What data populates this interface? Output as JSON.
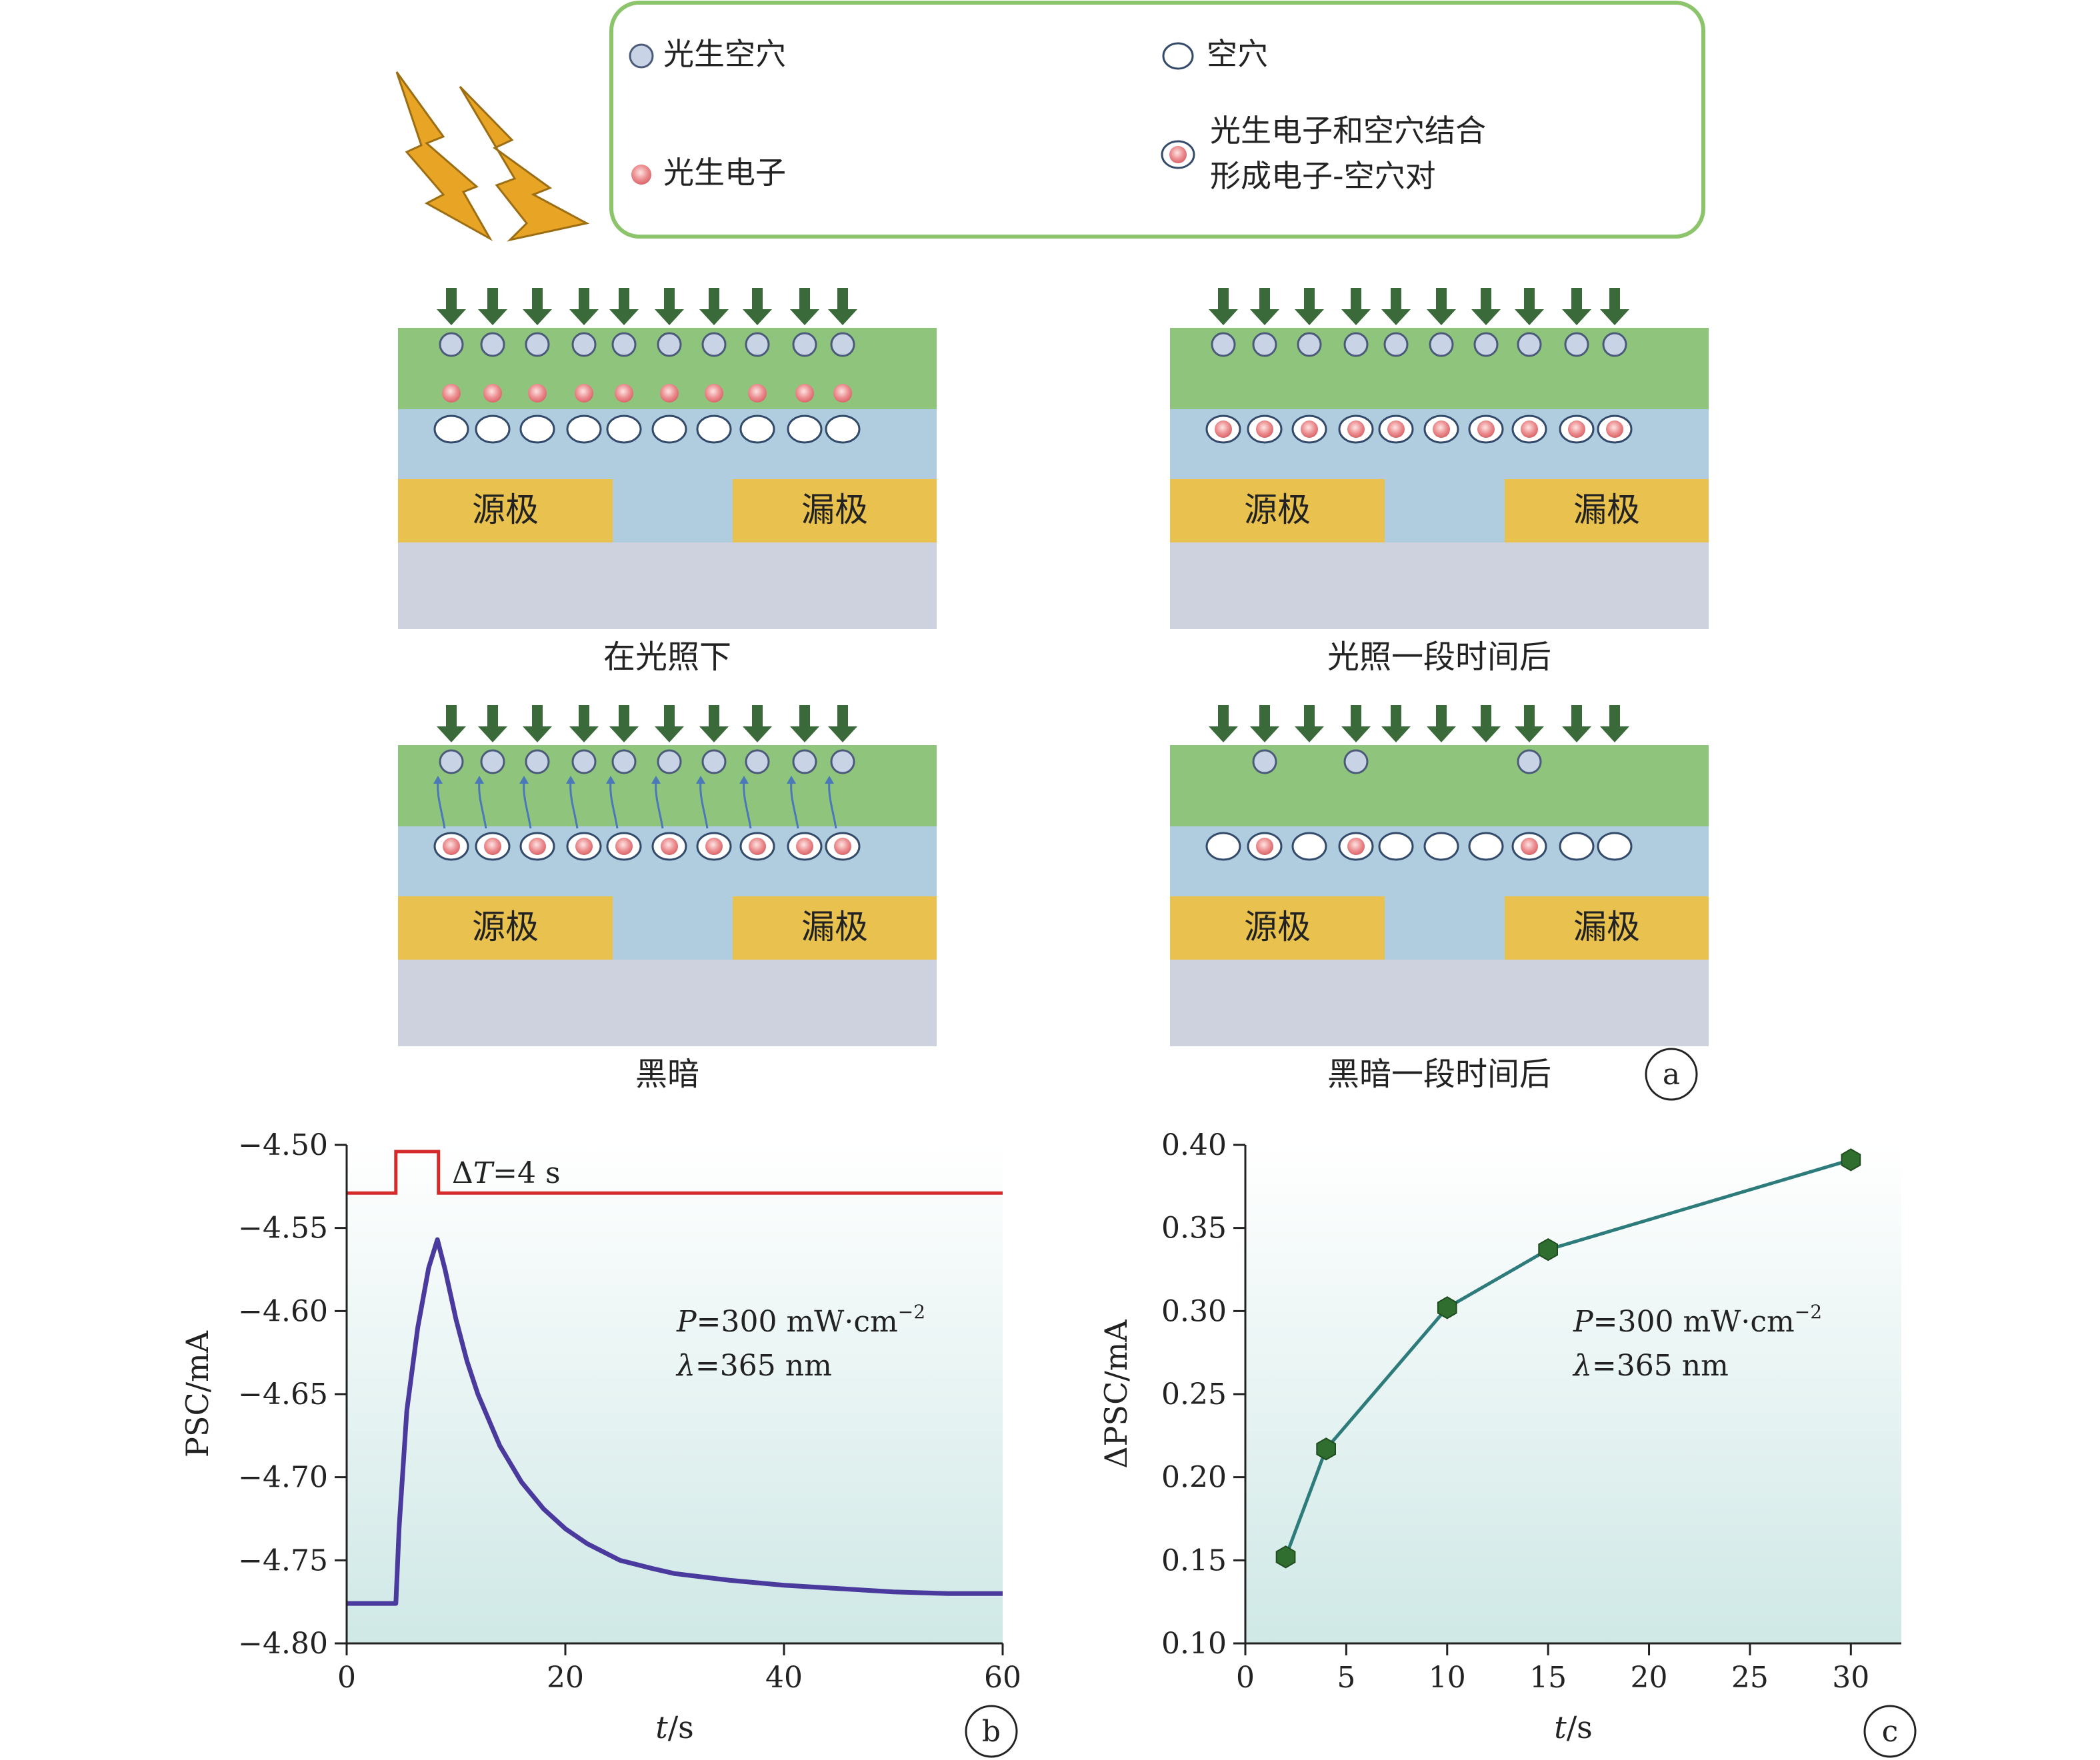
{
  "legend": {
    "items": [
      {
        "label": "光生空穴",
        "icon": "photo-hole-icon"
      },
      {
        "label": "空穴",
        "icon": "hole-icon"
      },
      {
        "label": "光生电子",
        "icon": "photo-electron-icon"
      },
      {
        "label_line1": "光生电子和空穴结合",
        "label_line2": "形成电子-空穴对",
        "icon": "electron-hole-pair-icon"
      }
    ]
  },
  "device": {
    "source_label": "源极",
    "drain_label": "漏极"
  },
  "panel_a": {
    "letter": "a",
    "captions": [
      "在光照下",
      "光照一段时间后",
      "黑暗",
      "黑暗一段时间后"
    ]
  },
  "colors": {
    "light_arrow": "#3a6a3a",
    "green_layer": "#8fc47c",
    "blue_layer": "#b0cde0",
    "electrode": "#e8c14f",
    "substrate": "#cdd2de",
    "hole_fill": "#c9d3e6",
    "electron": "#e8868a",
    "lightning": "#e8a424",
    "legend_border": "#8bc46a",
    "pulse_line": "#d42a2a",
    "psc_line": "#4b3a9e",
    "delta_line": "#2e7b7b",
    "delta_marker": "#2f6e2f"
  },
  "chart_data": [
    {
      "type": "line",
      "panel": "b",
      "xlabel": "t/s",
      "ylabel": "PSC/mA",
      "xlim": [
        0,
        60
      ],
      "ylim": [
        -4.8,
        -4.5
      ],
      "xticks": [
        0,
        20,
        40,
        60
      ],
      "yticks": [
        -4.5,
        -4.55,
        -4.6,
        -4.65,
        -4.7,
        -4.75,
        -4.8
      ],
      "ytick_labels": [
        "−4.50",
        "−4.55",
        "−4.60",
        "−4.65",
        "−4.70",
        "−4.75",
        "−4.80"
      ],
      "pulse_annotation": "ΔT=4 s",
      "annotation_line1": "P=300 mW·cm",
      "annotation_sup": "−2",
      "annotation_line2": "λ=365 nm",
      "pulse": {
        "t_on": 4.5,
        "t_off": 8.4,
        "level_high": -4.504,
        "level_low": -4.529
      },
      "series": [
        {
          "x": [
            0,
            4.5,
            4.8,
            5.5,
            6.5,
            7.5,
            8.3,
            9,
            10,
            11,
            12,
            14,
            16,
            18,
            20,
            22,
            25,
            28,
            30,
            35,
            40,
            45,
            50,
            55,
            60
          ],
          "y": [
            -4.776,
            -4.776,
            -4.73,
            -4.66,
            -4.61,
            -4.574,
            -4.557,
            -4.575,
            -4.605,
            -4.63,
            -4.65,
            -4.681,
            -4.703,
            -4.719,
            -4.731,
            -4.74,
            -4.75,
            -4.755,
            -4.758,
            -4.762,
            -4.765,
            -4.767,
            -4.769,
            -4.77,
            -4.77
          ]
        }
      ]
    },
    {
      "type": "line",
      "panel": "c",
      "xlabel": "t/s",
      "ylabel": "ΔPSC/mA",
      "xlim": [
        0,
        32.5
      ],
      "ylim": [
        0.1,
        0.4
      ],
      "xticks": [
        0,
        5,
        10,
        15,
        20,
        25,
        30
      ],
      "yticks": [
        0.1,
        0.15,
        0.2,
        0.25,
        0.3,
        0.35,
        0.4
      ],
      "ytick_labels": [
        "0.10",
        "0.15",
        "0.20",
        "0.25",
        "0.30",
        "0.35",
        "0.40"
      ],
      "annotation_line1": "P=300 mW·cm",
      "annotation_sup": "−2",
      "annotation_line2": "λ=365 nm",
      "series": [
        {
          "x": [
            2,
            4,
            10,
            15,
            30
          ],
          "y": [
            0.152,
            0.217,
            0.302,
            0.337,
            0.391
          ]
        }
      ]
    }
  ]
}
